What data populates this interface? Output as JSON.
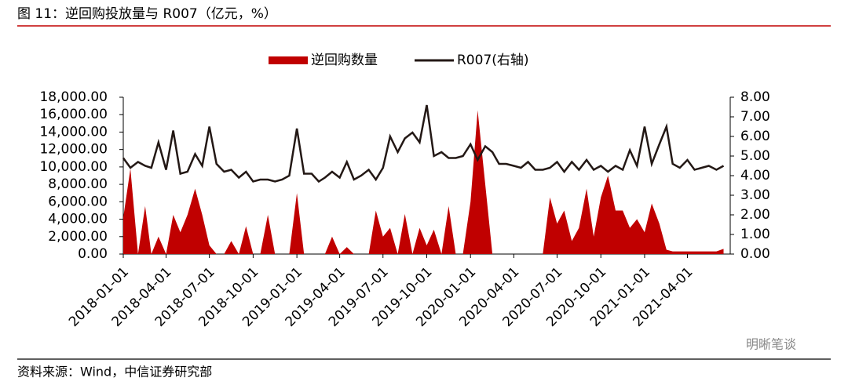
{
  "chart_data": {
    "type": "bar-area-line",
    "title": "图 11：逆回购投放量与 R007（亿元，%）",
    "source": "资料来源：Wind，中信证券研究部",
    "watermark": "明晰笔谈",
    "x": [
      "2018-01-01",
      "2018-01-16",
      "2018-02-01",
      "2018-02-16",
      "2018-03-01",
      "2018-03-16",
      "2018-04-01",
      "2018-04-16",
      "2018-05-01",
      "2018-05-16",
      "2018-06-01",
      "2018-06-16",
      "2018-07-01",
      "2018-07-16",
      "2018-08-01",
      "2018-08-16",
      "2018-09-01",
      "2018-09-16",
      "2018-10-01",
      "2018-10-16",
      "2018-11-01",
      "2018-11-16",
      "2018-12-01",
      "2018-12-16",
      "2019-01-01",
      "2019-01-16",
      "2019-02-01",
      "2019-02-16",
      "2019-03-01",
      "2019-03-16",
      "2019-04-01",
      "2019-04-16",
      "2019-05-01",
      "2019-05-16",
      "2019-06-01",
      "2019-06-16",
      "2019-07-01",
      "2019-07-16",
      "2019-08-01",
      "2019-08-16",
      "2019-09-01",
      "2019-09-16",
      "2019-10-01",
      "2019-10-16",
      "2019-11-01",
      "2019-11-16",
      "2019-12-01",
      "2019-12-16",
      "2020-01-01",
      "2020-01-16",
      "2020-02-01",
      "2020-02-16",
      "2020-03-01",
      "2020-03-16",
      "2020-04-01",
      "2020-04-16",
      "2020-05-01",
      "2020-05-16",
      "2020-06-01",
      "2020-06-16",
      "2020-07-01",
      "2020-07-16",
      "2020-08-01",
      "2020-08-16",
      "2020-09-01",
      "2020-09-16",
      "2020-10-01",
      "2020-10-16",
      "2020-11-01",
      "2020-11-16",
      "2020-12-01",
      "2020-12-16",
      "2021-01-01",
      "2021-01-16",
      "2021-02-01",
      "2021-02-16",
      "2021-03-01",
      "2021-03-16",
      "2021-04-01",
      "2021-04-16",
      "2021-05-01",
      "2021-05-16",
      "2021-06-01",
      "2021-06-16"
    ],
    "series": [
      {
        "name": "逆回购数量",
        "kind": "area",
        "color": "#c00000",
        "values": [
          4200,
          9800,
          0,
          5500,
          0,
          2000,
          0,
          4500,
          2500,
          4500,
          7500,
          4500,
          1000,
          0,
          0,
          1500,
          0,
          3200,
          0,
          0,
          4500,
          0,
          0,
          0,
          7000,
          0,
          0,
          0,
          0,
          2000,
          0,
          800,
          0,
          0,
          0,
          5000,
          2000,
          3000,
          0,
          4600,
          0,
          3000,
          1000,
          2800,
          0,
          5500,
          0,
          0,
          6000,
          16500,
          8000,
          0,
          0,
          0,
          0,
          0,
          0,
          0,
          0,
          6500,
          3500,
          5000,
          1500,
          3000,
          7500,
          2000,
          6500,
          9000,
          5000,
          5000,
          3000,
          4000,
          2500,
          5800,
          3500,
          500,
          300,
          300,
          300,
          300,
          300,
          300,
          300,
          600
        ]
      },
      {
        "name": "R007(右轴)",
        "kind": "line",
        "axis": "y2",
        "color": "#231815",
        "values": [
          4.9,
          4.4,
          4.7,
          4.5,
          4.4,
          5.7,
          4.3,
          6.3,
          4.1,
          4.2,
          5.1,
          4.5,
          6.5,
          4.6,
          4.2,
          4.3,
          3.9,
          4.2,
          3.7,
          3.8,
          3.8,
          3.7,
          3.8,
          4.0,
          6.4,
          4.1,
          4.1,
          3.7,
          3.9,
          4.2,
          3.9,
          4.7,
          3.8,
          4.0,
          4.3,
          3.8,
          4.4,
          6.0,
          5.2,
          5.9,
          6.2,
          5.7,
          7.6,
          5.0,
          5.2,
          4.9,
          4.9,
          5.0,
          5.6,
          4.8,
          5.5,
          5.2,
          4.6,
          4.6,
          4.5,
          4.4,
          4.7,
          4.3,
          4.3,
          4.4,
          4.7,
          4.2,
          4.7,
          4.3,
          4.8,
          4.3,
          4.5,
          4.2,
          4.5,
          4.3,
          5.3,
          4.5,
          6.5,
          4.6,
          5.6,
          6.5,
          4.6,
          4.4,
          4.8,
          4.3,
          4.4,
          4.5,
          4.3,
          4.5
        ]
      }
    ],
    "xlim": [
      "2018-01-01",
      "2021-06-30"
    ],
    "xticks": [
      "2018-01-01",
      "2018-04-01",
      "2018-07-01",
      "2018-10-01",
      "2019-01-01",
      "2019-04-01",
      "2019-07-01",
      "2019-10-01",
      "2020-01-01",
      "2020-04-01",
      "2020-07-01",
      "2020-10-01",
      "2021-01-01",
      "2021-04-01"
    ],
    "ylim": [
      0,
      18000
    ],
    "yticks": [
      {
        "value": 0,
        "label": "0.00"
      },
      {
        "value": 2000,
        "label": "2,000.00"
      },
      {
        "value": 4000,
        "label": "4,000.00"
      },
      {
        "value": 6000,
        "label": "6,000.00"
      },
      {
        "value": 8000,
        "label": "8,000.00"
      },
      {
        "value": 10000,
        "label": "10,000.00"
      },
      {
        "value": 12000,
        "label": "12,000.00"
      },
      {
        "value": 14000,
        "label": "14,000.00"
      },
      {
        "value": 16000,
        "label": "16,000.00"
      },
      {
        "value": 18000,
        "label": "18,000.00"
      }
    ],
    "y2lim": [
      0,
      8
    ],
    "y2ticks": [
      {
        "value": 0,
        "label": "0.00"
      },
      {
        "value": 1,
        "label": "1.00"
      },
      {
        "value": 2,
        "label": "2.00"
      },
      {
        "value": 3,
        "label": "3.00"
      },
      {
        "value": 4,
        "label": "4.00"
      },
      {
        "value": 5,
        "label": "5.00"
      },
      {
        "value": 6,
        "label": "6.00"
      },
      {
        "value": 7,
        "label": "7.00"
      },
      {
        "value": 8,
        "label": "8.00"
      }
    ],
    "legend": "top"
  }
}
